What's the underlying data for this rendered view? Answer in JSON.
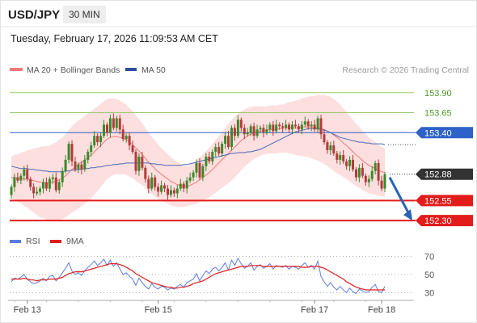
{
  "header": {
    "symbol": "USD/JPY",
    "timeframe": "30 MIN",
    "datetime": "Tuesday, February 17, 2026 11:09:53 AM CET"
  },
  "legend": {
    "ma20_label": "MA 20 + Bollinger Bands",
    "ma50_label": "MA 50",
    "credit": "Research © 2026 Trading Central",
    "rsi_label": "RSI",
    "ma9_label": "9MA"
  },
  "colors": {
    "up": "#3a8a2b",
    "down": "#b53b3b",
    "ma20": "#f07a7a",
    "ma50": "#4668b8",
    "band": "#fddcdc",
    "resistance_green": "#9acb6c",
    "pivot_blue": "#2e62c9",
    "support_red": "#e31b1b",
    "arrow": "#2b62b5",
    "last_tag": "#333333",
    "rsi_line": "#5b7de0",
    "ma9_line": "#e31b1b"
  },
  "chart_data": [
    {
      "type": "candlestick",
      "x_tick_labels": [
        "Feb 13",
        "Feb 15",
        "Feb 17",
        "Feb 18"
      ],
      "ylim": [
        152.2,
        154.1
      ],
      "levels": [
        {
          "value": 153.9,
          "label": "153.90",
          "kind": "resistance"
        },
        {
          "value": 153.65,
          "label": "153.65",
          "kind": "resistance"
        },
        {
          "value": 153.4,
          "label": "153.40",
          "kind": "pivot"
        },
        {
          "value": 152.88,
          "label": "152.88",
          "kind": "last"
        },
        {
          "value": 152.55,
          "label": "152.55",
          "kind": "support"
        },
        {
          "value": 152.3,
          "label": "152.30",
          "kind": "support"
        }
      ],
      "forecast_arrow": {
        "from": 152.88,
        "to": 152.3
      },
      "close": [
        152.72,
        152.84,
        152.8,
        152.86,
        152.94,
        152.82,
        152.72,
        152.64,
        152.66,
        152.7,
        152.78,
        152.7,
        152.82,
        152.84,
        152.68,
        152.78,
        152.92,
        153.06,
        153.26,
        153.04,
        152.94,
        153.0,
        152.94,
        153.06,
        153.16,
        153.24,
        153.36,
        153.28,
        153.36,
        153.5,
        153.4,
        153.58,
        153.46,
        153.58,
        153.44,
        153.32,
        153.36,
        153.24,
        153.16,
        152.92,
        153.1,
        152.96,
        152.82,
        152.7,
        152.84,
        152.72,
        152.66,
        152.74,
        152.7,
        152.62,
        152.68,
        152.64,
        152.7,
        152.76,
        152.7,
        152.8,
        152.84,
        152.9,
        153.02,
        152.84,
        152.98,
        153.1,
        153.04,
        153.16,
        153.22,
        153.14,
        153.26,
        153.36,
        153.22,
        153.46,
        153.36,
        153.56,
        153.46,
        153.38,
        153.4,
        153.48,
        153.36,
        153.44,
        153.46,
        153.4,
        153.44,
        153.5,
        153.42,
        153.5,
        153.48,
        153.46,
        153.5,
        153.44,
        153.5,
        153.48,
        153.44,
        153.5,
        153.54,
        153.48,
        153.5,
        153.44,
        153.58,
        153.38,
        153.28,
        153.18,
        153.24,
        153.14,
        153.06,
        153.12,
        153.04,
        152.98,
        153.06,
        152.94,
        152.84,
        152.96,
        152.86,
        152.78,
        152.82,
        152.92,
        153.02,
        152.8,
        152.7,
        152.88
      ],
      "ma20": [
        152.84,
        152.84,
        152.83,
        152.83,
        152.82,
        152.82,
        152.81,
        152.8,
        152.79,
        152.78,
        152.78,
        152.77,
        152.77,
        152.78,
        152.79,
        152.81,
        152.83,
        152.86,
        152.9,
        152.94,
        152.97,
        153.0,
        153.03,
        153.06,
        153.09,
        153.12,
        153.16,
        153.2,
        153.24,
        153.28,
        153.32,
        153.34,
        153.35,
        153.35,
        153.34,
        153.33,
        153.31,
        153.28,
        153.25,
        153.21,
        153.17,
        153.13,
        153.08,
        153.03,
        152.99,
        152.95,
        152.91,
        152.88,
        152.85,
        152.82,
        152.79,
        152.77,
        152.75,
        152.74,
        152.73,
        152.73,
        152.74,
        152.76,
        152.78,
        152.81,
        152.84,
        152.87,
        152.9,
        152.94,
        152.98,
        153.02,
        153.06,
        153.1,
        153.14,
        153.18,
        153.22,
        153.26,
        153.3,
        153.33,
        153.36,
        153.38,
        153.4,
        153.41,
        153.42,
        153.43,
        153.43,
        153.44,
        153.44,
        153.44,
        153.45,
        153.45,
        153.46,
        153.46,
        153.46,
        153.46,
        153.46,
        153.47,
        153.47,
        153.47,
        153.47,
        153.46,
        153.46,
        153.45,
        153.44,
        153.42,
        153.4,
        153.37,
        153.34,
        153.31,
        153.27,
        153.24,
        153.2,
        153.16,
        153.12,
        153.09,
        153.05,
        153.02,
        152.99,
        152.97,
        152.95,
        152.93,
        152.91,
        152.9
      ],
      "band_width": [
        0.26,
        0.28,
        0.3,
        0.32,
        0.34,
        0.36,
        0.38,
        0.4,
        0.42,
        0.44,
        0.45,
        0.46,
        0.47,
        0.48,
        0.49,
        0.5,
        0.51,
        0.52,
        0.53,
        0.54,
        0.55,
        0.55,
        0.55,
        0.55,
        0.55,
        0.55,
        0.54,
        0.53,
        0.52,
        0.51,
        0.5,
        0.49,
        0.48,
        0.47,
        0.46,
        0.45,
        0.44,
        0.43,
        0.42,
        0.41,
        0.4,
        0.39,
        0.38,
        0.37,
        0.36,
        0.35,
        0.34,
        0.33,
        0.32,
        0.31,
        0.3,
        0.29,
        0.28,
        0.27,
        0.26,
        0.25,
        0.25,
        0.26,
        0.27,
        0.28,
        0.29,
        0.3,
        0.31,
        0.32,
        0.33,
        0.34,
        0.35,
        0.36,
        0.37,
        0.38,
        0.38,
        0.38,
        0.37,
        0.36,
        0.35,
        0.34,
        0.33,
        0.32,
        0.31,
        0.3,
        0.3,
        0.3,
        0.3,
        0.3,
        0.3,
        0.3,
        0.31,
        0.32,
        0.33,
        0.34,
        0.35,
        0.36,
        0.37,
        0.38,
        0.39,
        0.4,
        0.41,
        0.42,
        0.43,
        0.44,
        0.45,
        0.45,
        0.45,
        0.44,
        0.43,
        0.42,
        0.41,
        0.4,
        0.39,
        0.38,
        0.37,
        0.36,
        0.35,
        0.34,
        0.33,
        0.32,
        0.31,
        0.3
      ],
      "ma50": [
        152.98,
        152.97,
        152.96,
        152.95,
        152.95,
        152.95,
        152.94,
        152.94,
        152.93,
        152.93,
        152.92,
        152.92,
        152.91,
        152.91,
        152.91,
        152.91,
        152.91,
        152.92,
        152.92,
        152.93,
        152.93,
        152.94,
        152.94,
        152.95,
        152.95,
        152.96,
        152.96,
        152.97,
        152.97,
        152.98,
        152.99,
        152.99,
        153.0,
        153.0,
        153.01,
        153.01,
        153.02,
        153.02,
        153.02,
        153.02,
        153.02,
        153.02,
        153.02,
        153.02,
        153.01,
        153.01,
        153.0,
        153.0,
        152.99,
        152.99,
        152.99,
        152.99,
        152.99,
        152.99,
        153.0,
        153.0,
        153.01,
        153.02,
        153.03,
        153.04,
        153.05,
        153.06,
        153.07,
        153.08,
        153.09,
        153.1,
        153.11,
        153.12,
        153.13,
        153.14,
        153.14,
        153.15,
        153.15,
        153.15,
        153.16,
        153.16,
        153.17,
        153.18,
        153.19,
        153.21,
        153.23,
        153.25,
        153.27,
        153.29,
        153.31,
        153.33,
        153.35,
        153.37,
        153.39,
        153.41,
        153.42,
        153.43,
        153.44,
        153.45,
        153.45,
        153.45,
        153.45,
        153.44,
        153.43,
        153.42,
        153.4,
        153.38,
        153.36,
        153.34,
        153.33,
        153.32,
        153.31,
        153.3,
        153.29,
        153.28,
        153.28,
        153.27,
        153.27,
        153.26,
        153.26,
        153.26,
        153.26,
        153.25
      ]
    },
    {
      "type": "line",
      "series": [
        {
          "name": "RSI"
        },
        {
          "name": "9MA"
        }
      ],
      "ylim": [
        25,
        75
      ],
      "y_ticks": [
        70,
        50,
        30
      ],
      "rsi": [
        42,
        46,
        45,
        47,
        50,
        45,
        42,
        40,
        41,
        43,
        46,
        43,
        48,
        49,
        43,
        47,
        52,
        57,
        63,
        54,
        50,
        52,
        49,
        54,
        58,
        61,
        65,
        60,
        63,
        67,
        60,
        66,
        59,
        63,
        56,
        50,
        52,
        48,
        45,
        38,
        46,
        41,
        37,
        34,
        40,
        36,
        34,
        37,
        36,
        33,
        35,
        34,
        37,
        39,
        36,
        41,
        43,
        45,
        51,
        43,
        49,
        54,
        51,
        56,
        58,
        54,
        58,
        63,
        55,
        66,
        60,
        68,
        62,
        57,
        59,
        63,
        55,
        59,
        61,
        57,
        59,
        62,
        56,
        60,
        59,
        58,
        60,
        56,
        59,
        58,
        56,
        60,
        63,
        58,
        60,
        56,
        65,
        48,
        42,
        37,
        41,
        36,
        33,
        37,
        33,
        30,
        35,
        31,
        29,
        34,
        32,
        30,
        31,
        36,
        39,
        31,
        30,
        37
      ],
      "ma9": [
        45,
        45,
        45,
        45,
        46,
        45,
        44,
        44,
        43,
        44,
        44,
        44,
        45,
        45,
        45,
        46,
        47,
        49,
        51,
        52,
        53,
        53,
        53,
        54,
        55,
        56,
        57,
        58,
        59,
        60,
        61,
        62,
        62,
        62,
        61,
        60,
        58,
        56,
        54,
        51,
        49,
        47,
        45,
        43,
        41,
        40,
        39,
        38,
        37,
        36,
        36,
        35,
        35,
        36,
        36,
        37,
        38,
        40,
        41,
        42,
        43,
        45,
        47,
        49,
        51,
        52,
        53,
        54,
        55,
        56,
        57,
        58,
        59,
        59,
        59,
        60,
        60,
        60,
        60,
        59,
        59,
        59,
        59,
        59,
        59,
        59,
        59,
        59,
        59,
        59,
        59,
        58,
        58,
        58,
        59,
        59,
        59,
        58,
        57,
        55,
        53,
        51,
        49,
        47,
        45,
        42,
        40,
        38,
        36,
        35,
        34,
        33,
        33,
        33,
        33,
        33,
        33,
        33
      ]
    }
  ]
}
